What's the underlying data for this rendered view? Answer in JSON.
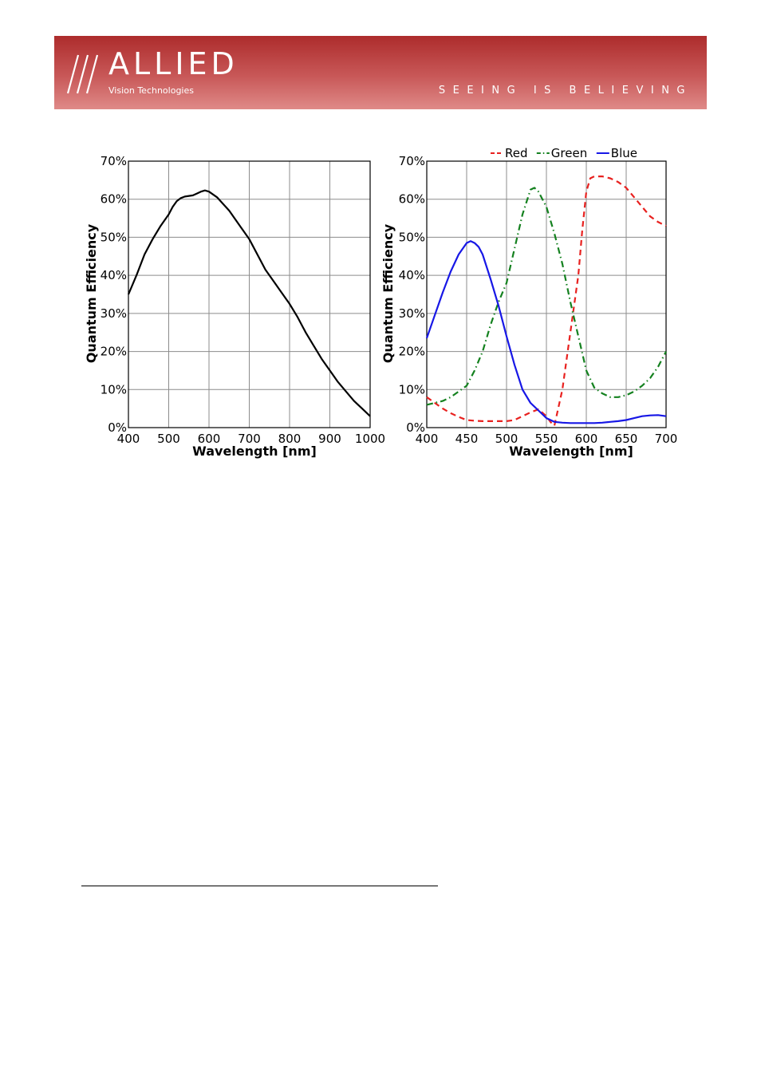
{
  "header": {
    "logo_main": "ALLIED",
    "logo_sub": "Vision Technologies",
    "tagline": "SEEING IS BELIEVING",
    "colors": {
      "banner_top": "#ad2c2c",
      "banner_bottom": "#df8a88",
      "text": "#ffffff"
    }
  },
  "chart_data": [
    {
      "type": "line",
      "xlabel": "Wavelength [nm]",
      "ylabel": "Quantum Efficiency",
      "xlim": [
        400,
        1000
      ],
      "ylim": [
        0,
        70
      ],
      "xticks": [
        "400",
        "500",
        "600",
        "700",
        "800",
        "900",
        "1000"
      ],
      "yticks": [
        "0%",
        "10%",
        "20%",
        "30%",
        "40%",
        "50%",
        "60%",
        "70%"
      ],
      "grid": true,
      "series": [
        {
          "color": "#000000",
          "style": "solid",
          "x": [
            400,
            420,
            440,
            460,
            480,
            500,
            510,
            520,
            530,
            540,
            560,
            570,
            580,
            590,
            600,
            620,
            650,
            680,
            700,
            720,
            740,
            760,
            780,
            800,
            820,
            840,
            860,
            880,
            900,
            920,
            940,
            960,
            980,
            1000
          ],
          "y": [
            35,
            40,
            45.5,
            49.5,
            53,
            56,
            58,
            59.5,
            60.3,
            60.7,
            61,
            61.5,
            62,
            62.3,
            62,
            60.5,
            57,
            52.5,
            49.5,
            45.5,
            41.5,
            38.5,
            35.5,
            32.5,
            29,
            25,
            21.5,
            18,
            15,
            12,
            9.5,
            7,
            5,
            3
          ]
        }
      ]
    },
    {
      "type": "line",
      "xlabel": "Wavelength [nm]",
      "ylabel": "Quantum Efficiency",
      "xlim": [
        400,
        700
      ],
      "ylim": [
        0,
        70
      ],
      "xticks": [
        "400",
        "450",
        "500",
        "550",
        "600",
        "650",
        "700"
      ],
      "yticks": [
        "0%",
        "10%",
        "20%",
        "30%",
        "40%",
        "50%",
        "60%",
        "70%"
      ],
      "grid": true,
      "legend": "top",
      "series": [
        {
          "name": "Red",
          "color": "#e8211f",
          "style": "dashed",
          "x": [
            400,
            410,
            420,
            430,
            440,
            450,
            460,
            470,
            480,
            490,
            500,
            510,
            520,
            530,
            540,
            550,
            555,
            560,
            570,
            580,
            590,
            595,
            600,
            605,
            610,
            620,
            630,
            640,
            650,
            660,
            670,
            680,
            690,
            700
          ],
          "y": [
            8,
            6.5,
            5,
            3.8,
            2.8,
            2,
            1.8,
            1.7,
            1.7,
            1.7,
            1.7,
            2,
            3,
            4,
            4.8,
            3,
            1.5,
            0.5,
            10,
            25,
            40,
            52,
            62,
            65.5,
            66,
            66,
            65.5,
            64.5,
            63,
            60.5,
            58,
            55.5,
            54,
            53
          ]
        },
        {
          "name": "Green",
          "color": "#14811f",
          "style": "dash-dot",
          "x": [
            400,
            410,
            420,
            430,
            440,
            450,
            460,
            470,
            480,
            490,
            500,
            510,
            520,
            530,
            535,
            540,
            550,
            560,
            570,
            580,
            590,
            600,
            610,
            620,
            630,
            640,
            650,
            660,
            670,
            680,
            690,
            700
          ],
          "y": [
            6,
            6.5,
            7,
            8,
            9.5,
            11,
            15,
            20,
            27,
            33,
            38,
            47,
            56,
            62.5,
            63,
            62,
            58,
            51,
            43,
            33,
            24,
            15,
            10.5,
            9,
            8,
            8,
            8.5,
            9.5,
            11,
            13,
            16,
            20
          ]
        },
        {
          "name": "Blue",
          "color": "#1717e6",
          "style": "solid",
          "x": [
            400,
            410,
            420,
            430,
            440,
            450,
            455,
            460,
            465,
            470,
            480,
            490,
            500,
            510,
            520,
            530,
            540,
            550,
            560,
            570,
            580,
            590,
            600,
            610,
            620,
            630,
            640,
            650,
            660,
            670,
            680,
            690,
            700
          ],
          "y": [
            23.5,
            29.5,
            35.5,
            41,
            45.5,
            48.5,
            49,
            48.5,
            47.5,
            45.5,
            39,
            32,
            24,
            16.5,
            10,
            6.5,
            4.5,
            2.5,
            1.5,
            1.3,
            1.2,
            1.2,
            1.2,
            1.2,
            1.3,
            1.5,
            1.7,
            2,
            2.5,
            3,
            3.2,
            3.3,
            3
          ]
        }
      ]
    }
  ]
}
